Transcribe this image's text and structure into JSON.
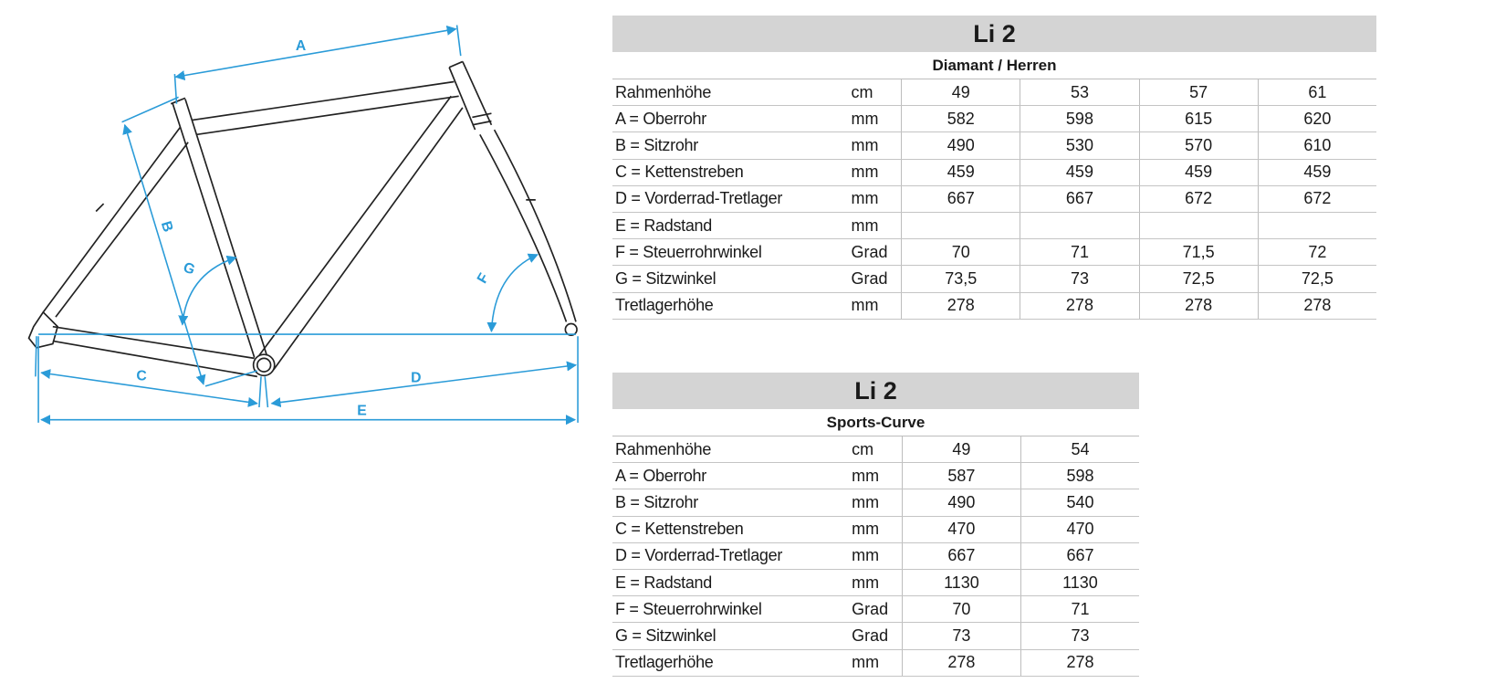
{
  "diagram": {
    "labels": [
      "A",
      "B",
      "C",
      "D",
      "E",
      "F",
      "G"
    ],
    "dimension_color": "#2a9bd8",
    "frame_color": "#222222"
  },
  "table1": {
    "title": "Li 2",
    "subtitle": "Diamant / Herren",
    "rows": [
      {
        "label": "Rahmenhöhe",
        "unit": "cm",
        "values": [
          "49",
          "53",
          "57",
          "61"
        ]
      },
      {
        "label": "A = Oberrohr",
        "unit": "mm",
        "values": [
          "582",
          "598",
          "615",
          "620"
        ]
      },
      {
        "label": "B = Sitzrohr",
        "unit": "mm",
        "values": [
          "490",
          "530",
          "570",
          "610"
        ]
      },
      {
        "label": "C = Kettenstreben",
        "unit": "mm",
        "values": [
          "459",
          "459",
          "459",
          "459"
        ]
      },
      {
        "label": "D = Vorderrad-Tretlager",
        "unit": "mm",
        "values": [
          "667",
          "667",
          "672",
          "672"
        ]
      },
      {
        "label": "E = Radstand",
        "unit": "mm",
        "values": [
          "",
          "",
          "",
          ""
        ]
      },
      {
        "label": "F = Steuerrohrwinkel",
        "unit": "Grad",
        "values": [
          "70",
          "71",
          "71,5",
          "72"
        ]
      },
      {
        "label": "G = Sitzwinkel",
        "unit": "Grad",
        "values": [
          "73,5",
          "73",
          "72,5",
          "72,5"
        ]
      },
      {
        "label": "Tretlagerhöhe",
        "unit": "mm",
        "values": [
          "278",
          "278",
          "278",
          "278"
        ]
      }
    ]
  },
  "table2": {
    "title": "Li 2",
    "subtitle": "Sports-Curve",
    "rows": [
      {
        "label": "Rahmenhöhe",
        "unit": "cm",
        "values": [
          "49",
          "54"
        ]
      },
      {
        "label": "A = Oberrohr",
        "unit": "mm",
        "values": [
          "587",
          "598"
        ]
      },
      {
        "label": "B = Sitzrohr",
        "unit": "mm",
        "values": [
          "490",
          "540"
        ]
      },
      {
        "label": "C = Kettenstreben",
        "unit": "mm",
        "values": [
          "470",
          "470"
        ]
      },
      {
        "label": "D = Vorderrad-Tretlager",
        "unit": "mm",
        "values": [
          "667",
          "667"
        ]
      },
      {
        "label": "E = Radstand",
        "unit": "mm",
        "values": [
          "1130",
          "1130"
        ]
      },
      {
        "label": "F = Steuerrohrwinkel",
        "unit": "Grad",
        "values": [
          "70",
          "71"
        ]
      },
      {
        "label": "G = Sitzwinkel",
        "unit": "Grad",
        "values": [
          "73",
          "73"
        ]
      },
      {
        "label": "Tretlagerhöhe",
        "unit": "mm",
        "values": [
          "278",
          "278"
        ]
      }
    ]
  }
}
